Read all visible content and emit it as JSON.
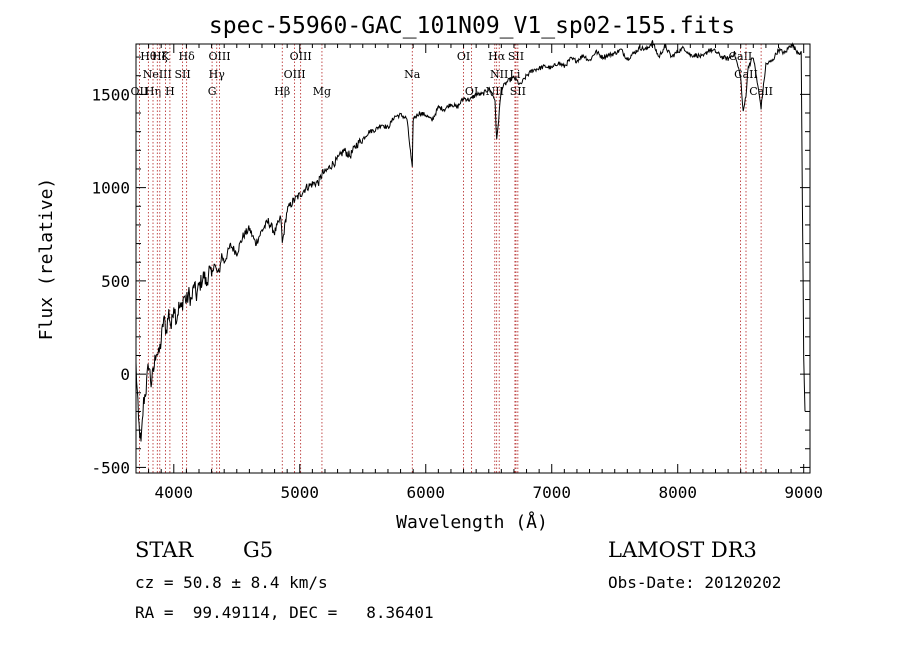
{
  "chart_data": {
    "type": "line",
    "title": "spec-55960-GAC_101N09_V1_sp02-155.fits",
    "xlabel": "Wavelength (Å)",
    "ylabel": "Flux (relative)",
    "xlim": [
      3700,
      9050
    ],
    "ylim": [
      -530,
      1770
    ],
    "xticks": [
      4000,
      5000,
      6000,
      7000,
      8000,
      9000
    ],
    "yticks": [
      -500,
      0,
      500,
      1000,
      1500
    ],
    "grid": false,
    "series": [
      {
        "name": "flux",
        "x": [
          3700,
          3720,
          3740,
          3760,
          3780,
          3800,
          3820,
          3840,
          3860,
          3880,
          3900,
          3920,
          3940,
          3960,
          3980,
          4000,
          4020,
          4040,
          4060,
          4080,
          4100,
          4120,
          4140,
          4160,
          4180,
          4200,
          4220,
          4240,
          4260,
          4280,
          4300,
          4320,
          4340,
          4360,
          4380,
          4400,
          4450,
          4500,
          4550,
          4600,
          4650,
          4700,
          4750,
          4800,
          4850,
          4861,
          4900,
          4950,
          5000,
          5050,
          5100,
          5150,
          5183,
          5200,
          5250,
          5300,
          5350,
          5400,
          5450,
          5500,
          5550,
          5600,
          5650,
          5700,
          5750,
          5800,
          5850,
          5893,
          5900,
          5950,
          6000,
          6050,
          6100,
          6150,
          6200,
          6250,
          6300,
          6350,
          6400,
          6450,
          6500,
          6550,
          6563,
          6600,
          6650,
          6700,
          6750,
          6800,
          6850,
          6900,
          6950,
          7000,
          7050,
          7100,
          7150,
          7200,
          7250,
          7300,
          7350,
          7400,
          7450,
          7500,
          7550,
          7600,
          7650,
          7700,
          7750,
          7800,
          7850,
          7900,
          7950,
          8000,
          8050,
          8100,
          8150,
          8200,
          8250,
          8300,
          8350,
          8400,
          8450,
          8498,
          8520,
          8542,
          8560,
          8600,
          8662,
          8700,
          8750,
          8800,
          8850,
          8900,
          8950,
          8980,
          9000,
          9010
        ],
        "y": [
          50,
          -250,
          -380,
          -150,
          -80,
          60,
          -50,
          20,
          130,
          100,
          180,
          300,
          230,
          330,
          250,
          380,
          290,
          360,
          350,
          420,
          390,
          430,
          390,
          480,
          420,
          470,
          500,
          530,
          480,
          560,
          520,
          600,
          550,
          540,
          640,
          600,
          690,
          650,
          740,
          780,
          700,
          770,
          820,
          760,
          840,
          700,
          880,
          930,
          960,
          1000,
          1020,
          1030,
          1080,
          1080,
          1120,
          1150,
          1200,
          1170,
          1230,
          1260,
          1300,
          1310,
          1340,
          1320,
          1380,
          1390,
          1370,
          1100,
          1370,
          1400,
          1390,
          1360,
          1430,
          1420,
          1450,
          1430,
          1480,
          1470,
          1500,
          1500,
          1530,
          1470,
          1250,
          1530,
          1570,
          1590,
          1550,
          1600,
          1630,
          1640,
          1650,
          1640,
          1670,
          1650,
          1690,
          1680,
          1710,
          1680,
          1730,
          1700,
          1710,
          1720,
          1740,
          1690,
          1720,
          1750,
          1740,
          1780,
          1700,
          1760,
          1700,
          1730,
          1750,
          1710,
          1710,
          1700,
          1740,
          1730,
          1700,
          1690,
          1720,
          1600,
          1400,
          1500,
          1650,
          1700,
          1430,
          1660,
          1680,
          1740,
          1720,
          1770,
          1730,
          1720,
          100,
          -200
        ]
      }
    ],
    "line_markers": [
      {
        "wavelength": 3727,
        "label": "OII",
        "row": 2
      },
      {
        "wavelength": 3798,
        "label": "Hθ",
        "row": 0
      },
      {
        "wavelength": 3835,
        "label": "Hη",
        "row": 2
      },
      {
        "wavelength": 3869,
        "label": "NeIII",
        "row": 1
      },
      {
        "wavelength": 3889,
        "label": "Hζ",
        "row": 0
      },
      {
        "wavelength": 3934,
        "label": "K",
        "row": 0
      },
      {
        "wavelength": 3969,
        "label": "H",
        "row": 2
      },
      {
        "wavelength": 4070,
        "label": "SII",
        "row": 1
      },
      {
        "wavelength": 4102,
        "label": "Hδ",
        "row": 0
      },
      {
        "wavelength": 4304,
        "label": "G",
        "row": 2
      },
      {
        "wavelength": 4341,
        "label": "Hγ",
        "row": 1
      },
      {
        "wavelength": 4363,
        "label": "OIII",
        "row": 0
      },
      {
        "wavelength": 4861,
        "label": "Hβ",
        "row": 2
      },
      {
        "wavelength": 4959,
        "label": "OIII",
        "row": 1
      },
      {
        "wavelength": 5007,
        "label": "OIII",
        "row": 0
      },
      {
        "wavelength": 5176,
        "label": "Mg",
        "row": 2
      },
      {
        "wavelength": 5893,
        "label": "Na",
        "row": 1
      },
      {
        "wavelength": 6300,
        "label": "OI",
        "row": 0
      },
      {
        "wavelength": 6364,
        "label": "OI",
        "row": 2
      },
      {
        "wavelength": 6548,
        "label": "NII",
        "row": 2
      },
      {
        "wavelength": 6563,
        "label": "Hα",
        "row": 0
      },
      {
        "wavelength": 6583,
        "label": "NII",
        "row": 1
      },
      {
        "wavelength": 6716,
        "label": "SII",
        "row": 0
      },
      {
        "wavelength": 6731,
        "label": "SII",
        "row": 2
      },
      {
        "wavelength": 6708,
        "label": "Li",
        "row": 1
      },
      {
        "wavelength": 8498,
        "label": "CaII",
        "row": 0
      },
      {
        "wavelength": 8542,
        "label": "CaII",
        "row": 1
      },
      {
        "wavelength": 8662,
        "label": "CaII",
        "row": 2
      }
    ],
    "colors": {
      "line": "#000000",
      "markers": "#b22222",
      "axes": "#000000"
    }
  },
  "info": {
    "object_class": "STAR",
    "subclass": "G5",
    "survey": "LAMOST DR3",
    "redshift": "cz = 50.8 ± 8.4 km/s",
    "obs_date": "Obs-Date: 20120202",
    "coords": "RA =  99.49114, DEC =   8.36401"
  }
}
